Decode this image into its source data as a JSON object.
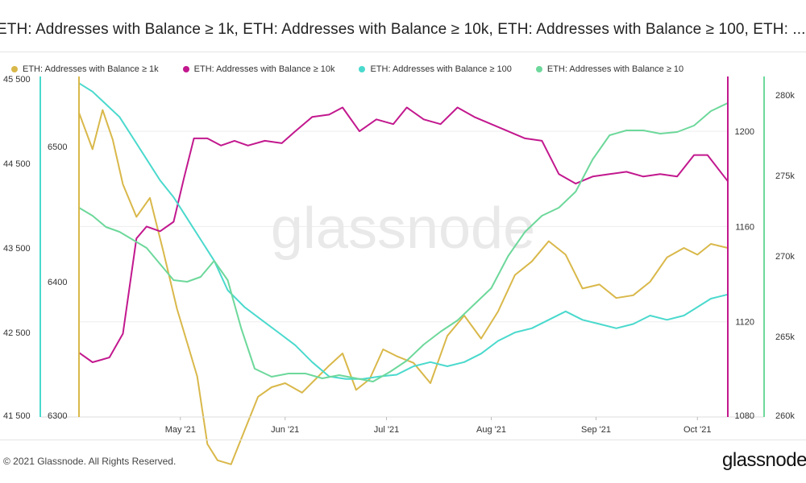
{
  "title": "ETH: Addresses with Balance ≥ 1k, ETH: Addresses with Balance ≥ 10k, ETH: Addresses with Balance ≥ 100, ETH: ...",
  "footer": "© 2021 Glassnode. All Rights Reserved.",
  "brand": "glassnode",
  "watermark": "glassnode",
  "chart_data": {
    "type": "line",
    "x_ticks": [
      "May '21",
      "Jun '21",
      "Jul '21",
      "Aug '21",
      "Sep '21",
      "Oct '21"
    ],
    "x_range": [
      "2021-04-01",
      "2021-10-10"
    ],
    "grid": true,
    "legend_position": "top-left",
    "axes": {
      "left_outer": {
        "ticks": [
          "45 500",
          "44 500",
          "43 500",
          "42 500",
          "41 500"
        ],
        "range": [
          41500,
          45500
        ],
        "color": "#4ad9cd"
      },
      "left_inner": {
        "ticks": [
          "6500",
          "6400",
          "6300"
        ],
        "range": [
          6300,
          6550
        ],
        "color": "#d9b84a"
      },
      "right_inner": {
        "ticks": [
          "1200",
          "1160",
          "1120",
          "1080"
        ],
        "range": [
          1080,
          1222
        ],
        "color": "#c2188e"
      },
      "right_outer": {
        "ticks": [
          "280k",
          "275k",
          "270k",
          "265k",
          "260k"
        ],
        "range": [
          260000,
          281000
        ],
        "color": "#6dd89b"
      }
    },
    "series": [
      {
        "name": "ETH: Addresses with Balance ≥ 1k",
        "color": "#d9b84a",
        "axis": "left_inner",
        "x": [
          "2021-04-01",
          "2021-04-05",
          "2021-04-08",
          "2021-04-11",
          "2021-04-14",
          "2021-04-18",
          "2021-04-22",
          "2021-04-26",
          "2021-04-30",
          "2021-05-03",
          "2021-05-06",
          "2021-05-09",
          "2021-05-12",
          "2021-05-16",
          "2021-05-20",
          "2021-05-24",
          "2021-05-28",
          "2021-06-01",
          "2021-06-06",
          "2021-06-10",
          "2021-06-14",
          "2021-06-18",
          "2021-06-22",
          "2021-06-26",
          "2021-06-30",
          "2021-07-04",
          "2021-07-09",
          "2021-07-14",
          "2021-07-19",
          "2021-07-24",
          "2021-07-29",
          "2021-08-03",
          "2021-08-08",
          "2021-08-13",
          "2021-08-18",
          "2021-08-23",
          "2021-08-28",
          "2021-09-02",
          "2021-09-07",
          "2021-09-12",
          "2021-09-17",
          "2021-09-22",
          "2021-09-27",
          "2021-10-01",
          "2021-10-05",
          "2021-10-10"
        ],
        "y": [
          6525,
          6498,
          6527,
          6505,
          6472,
          6448,
          6462,
          6422,
          6380,
          6355,
          6330,
          6280,
          6268,
          6265,
          6290,
          6315,
          6322,
          6325,
          6318,
          6328,
          6338,
          6347,
          6320,
          6328,
          6350,
          6345,
          6340,
          6325,
          6360,
          6375,
          6358,
          6378,
          6405,
          6415,
          6430,
          6420,
          6395,
          6398,
          6388,
          6390,
          6400,
          6418,
          6425,
          6420,
          6428,
          6425
        ]
      },
      {
        "name": "ETH: Addresses with Balance ≥ 10k",
        "color": "#c2188e",
        "axis": "right_inner",
        "x": [
          "2021-04-01",
          "2021-04-05",
          "2021-04-10",
          "2021-04-14",
          "2021-04-18",
          "2021-04-21",
          "2021-04-25",
          "2021-04-29",
          "2021-05-02",
          "2021-05-05",
          "2021-05-09",
          "2021-05-13",
          "2021-05-17",
          "2021-05-21",
          "2021-05-26",
          "2021-05-31",
          "2021-06-04",
          "2021-06-09",
          "2021-06-14",
          "2021-06-18",
          "2021-06-23",
          "2021-06-28",
          "2021-07-03",
          "2021-07-07",
          "2021-07-12",
          "2021-07-17",
          "2021-07-22",
          "2021-07-27",
          "2021-08-01",
          "2021-08-06",
          "2021-08-11",
          "2021-08-16",
          "2021-08-21",
          "2021-08-26",
          "2021-08-31",
          "2021-09-05",
          "2021-09-10",
          "2021-09-15",
          "2021-09-20",
          "2021-09-25",
          "2021-09-30",
          "2021-10-04",
          "2021-10-10"
        ],
        "y": [
          1107,
          1103,
          1105,
          1115,
          1155,
          1160,
          1158,
          1162,
          1180,
          1197,
          1197,
          1194,
          1196,
          1194,
          1196,
          1195,
          1200,
          1206,
          1207,
          1210,
          1200,
          1205,
          1203,
          1210,
          1205,
          1203,
          1210,
          1206,
          1203,
          1200,
          1197,
          1196,
          1182,
          1178,
          1181,
          1182,
          1183,
          1181,
          1182,
          1181,
          1190,
          1190,
          1179
        ]
      },
      {
        "name": "ETH: Addresses with Balance ≥ 100",
        "color": "#4ad9cd",
        "axis": "left_outer",
        "x": [
          "2021-04-01",
          "2021-04-05",
          "2021-04-09",
          "2021-04-13",
          "2021-04-17",
          "2021-04-21",
          "2021-04-25",
          "2021-04-29",
          "2021-05-03",
          "2021-05-07",
          "2021-05-11",
          "2021-05-15",
          "2021-05-20",
          "2021-05-25",
          "2021-05-30",
          "2021-06-04",
          "2021-06-09",
          "2021-06-14",
          "2021-06-19",
          "2021-06-24",
          "2021-06-29",
          "2021-07-04",
          "2021-07-09",
          "2021-07-14",
          "2021-07-19",
          "2021-07-24",
          "2021-07-29",
          "2021-08-03",
          "2021-08-08",
          "2021-08-13",
          "2021-08-18",
          "2021-08-23",
          "2021-08-28",
          "2021-09-02",
          "2021-09-07",
          "2021-09-12",
          "2021-09-17",
          "2021-09-22",
          "2021-09-27",
          "2021-10-01",
          "2021-10-05",
          "2021-10-10"
        ],
        "y": [
          45450,
          45350,
          45200,
          45050,
          44800,
          44550,
          44300,
          44100,
          43850,
          43600,
          43350,
          43000,
          42800,
          42650,
          42500,
          42350,
          42150,
          41980,
          41950,
          41950,
          41980,
          42000,
          42100,
          42150,
          42100,
          42150,
          42250,
          42400,
          42500,
          42550,
          42650,
          42750,
          42650,
          42600,
          42550,
          42600,
          42700,
          42650,
          42700,
          42800,
          42900,
          42950
        ]
      },
      {
        "name": "ETH: Addresses with Balance ≥ 10",
        "color": "#6dd89b",
        "axis": "right_outer",
        "x": [
          "2021-04-01",
          "2021-04-05",
          "2021-04-09",
          "2021-04-13",
          "2021-04-17",
          "2021-04-21",
          "2021-04-25",
          "2021-04-29",
          "2021-05-03",
          "2021-05-07",
          "2021-05-11",
          "2021-05-15",
          "2021-05-19",
          "2021-05-23",
          "2021-05-28",
          "2021-06-02",
          "2021-06-07",
          "2021-06-12",
          "2021-06-17",
          "2021-06-22",
          "2021-06-27",
          "2021-07-02",
          "2021-07-07",
          "2021-07-12",
          "2021-07-17",
          "2021-07-22",
          "2021-07-27",
          "2021-08-01",
          "2021-08-06",
          "2021-08-11",
          "2021-08-16",
          "2021-08-21",
          "2021-08-26",
          "2021-08-31",
          "2021-09-05",
          "2021-09-10",
          "2021-09-15",
          "2021-09-20",
          "2021-09-25",
          "2021-09-30",
          "2021-10-05",
          "2021-10-10"
        ],
        "y": [
          273000,
          272500,
          271800,
          271500,
          271000,
          270500,
          269500,
          268500,
          268400,
          268700,
          269700,
          268500,
          265500,
          263000,
          262500,
          262700,
          262700,
          262400,
          262600,
          262400,
          262200,
          262800,
          263500,
          264500,
          265300,
          266000,
          267000,
          268000,
          270000,
          271500,
          272500,
          273000,
          274000,
          276000,
          277500,
          277800,
          277800,
          277600,
          277700,
          278100,
          279000,
          279500
        ]
      }
    ]
  }
}
